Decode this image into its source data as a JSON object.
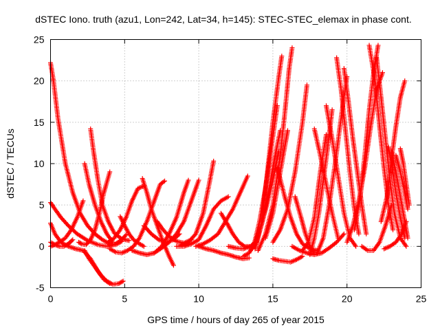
{
  "chart_data": {
    "type": "scatter",
    "title": "dSTEC Iono. truth (azu1, Lon=242, Lat=34, h=145): STEC-STEC_elemax in phase cont.",
    "xlabel": "GPS time / hours of day 265 of year 2015",
    "ylabel": "dSTEC  / TECUs",
    "xlim": [
      0,
      25
    ],
    "ylim": [
      -5,
      25
    ],
    "x_ticks": [
      0,
      5,
      10,
      15,
      20,
      25
    ],
    "y_ticks": [
      -5,
      0,
      5,
      10,
      15,
      20,
      25
    ],
    "grid": true,
    "marker": "plus",
    "color": "#ff0000",
    "arcs": [
      {
        "x": [
          0.0,
          0.2,
          0.5,
          1.0,
          1.5,
          2.0,
          2.5,
          3.0,
          3.5,
          4.0,
          4.4,
          4.8
        ],
        "y": [
          22.2,
          20.0,
          15.5,
          10.0,
          6.5,
          4.0,
          2.5,
          1.5,
          0.8,
          0.3,
          0.2,
          0.6
        ]
      },
      {
        "x": [
          0.0,
          0.3,
          0.7,
          1.2,
          1.8,
          2.5,
          3.2,
          3.8,
          4.3,
          4.8,
          5.1
        ],
        "y": [
          5.3,
          4.5,
          3.5,
          2.5,
          1.5,
          0.7,
          0.2,
          0.0,
          0.2,
          0.8,
          1.4
        ]
      },
      {
        "x": [
          0.0,
          0.3,
          0.7,
          1.2,
          1.7,
          2.2,
          2.7,
          3.2,
          3.6,
          4.0
        ],
        "y": [
          2.8,
          1.5,
          0.5,
          0.0,
          -0.3,
          -0.5,
          -1.5,
          -3.0,
          -4.0,
          -4.5
        ]
      },
      {
        "x": [
          0.0,
          0.3,
          0.6,
          1.0,
          1.4,
          1.8,
          2.2
        ],
        "y": [
          0.0,
          0.2,
          0.5,
          1.0,
          2.0,
          3.5,
          5.5
        ]
      },
      {
        "x": [
          0.0,
          0.3,
          0.6,
          0.9,
          1.2,
          1.5
        ],
        "y": [
          0.5,
          0.2,
          0.0,
          0.0,
          0.3,
          0.8
        ]
      },
      {
        "x": [
          2.3,
          2.6,
          3.0,
          3.4,
          3.8,
          4.2,
          4.6,
          4.9
        ],
        "y": [
          -0.5,
          -1.5,
          -2.5,
          -3.5,
          -4.2,
          -4.6,
          -4.5,
          -4.2
        ]
      },
      {
        "x": [
          2.7,
          2.9,
          3.2,
          3.5,
          3.9,
          4.3,
          4.8,
          5.3
        ],
        "y": [
          14.2,
          11.5,
          8.0,
          5.0,
          3.0,
          1.6,
          0.9,
          0.7
        ]
      },
      {
        "x": [
          2.3,
          2.6,
          3.0,
          3.4,
          3.8,
          4.2
        ],
        "y": [
          10.0,
          7.5,
          5.0,
          3.0,
          1.5,
          0.5
        ]
      },
      {
        "x": [
          1.9,
          2.1,
          2.4,
          2.7,
          3.0,
          3.3,
          3.6,
          4.0
        ],
        "y": [
          0.5,
          0.3,
          0.2,
          0.8,
          2.0,
          4.0,
          6.5,
          9.0
        ]
      },
      {
        "x": [
          4.7,
          5.0,
          5.3,
          5.6,
          6.0,
          6.3
        ],
        "y": [
          3.6,
          2.5,
          1.5,
          0.8,
          0.3,
          0.0
        ]
      },
      {
        "x": [
          3.9,
          4.3,
          4.7,
          5.1,
          5.5,
          5.9,
          6.3
        ],
        "y": [
          0.5,
          1.0,
          2.0,
          3.5,
          5.5,
          7.0,
          7.3
        ]
      },
      {
        "x": [
          4.0,
          4.4,
          4.8,
          5.2,
          5.6,
          6.0,
          6.5,
          7.0,
          7.4,
          7.7
        ],
        "y": [
          -0.3,
          -0.7,
          -0.8,
          -0.5,
          0.0,
          1.0,
          3.0,
          5.5,
          7.5,
          7.9
        ]
      },
      {
        "x": [
          6.2,
          6.5,
          6.8,
          7.2,
          7.6,
          8.0,
          8.3
        ],
        "y": [
          8.2,
          6.5,
          4.5,
          2.5,
          0.5,
          -1.2,
          -2.3
        ]
      },
      {
        "x": [
          5.5,
          6.0,
          6.5,
          7.0,
          7.5,
          8.0,
          8.5,
          9.0,
          9.3
        ],
        "y": [
          -0.5,
          -0.8,
          -1.0,
          -0.8,
          0.0,
          1.5,
          3.5,
          6.5,
          8.0
        ]
      },
      {
        "x": [
          6.3,
          6.8,
          7.3,
          7.8,
          8.3,
          8.7
        ],
        "y": [
          2.5,
          1.5,
          0.8,
          0.5,
          0.8,
          1.5
        ]
      },
      {
        "x": [
          7.0,
          7.5,
          8.0,
          8.5,
          9.0,
          9.5,
          10.0
        ],
        "y": [
          -0.8,
          -0.2,
          0.5,
          1.5,
          3.0,
          5.5,
          8.0
        ]
      },
      {
        "x": [
          7.2,
          7.6,
          8.0,
          8.5,
          9.0,
          9.5
        ],
        "y": [
          3.0,
          2.0,
          1.2,
          0.6,
          0.4,
          0.8
        ]
      },
      {
        "x": [
          8.8,
          9.3,
          9.8,
          10.3,
          10.7,
          11.0
        ],
        "y": [
          0.1,
          0.5,
          1.5,
          4.0,
          7.5,
          10.3
        ]
      },
      {
        "x": [
          8.5,
          9.0,
          9.5,
          10.0,
          10.5,
          11.0,
          11.5,
          12.0
        ],
        "y": [
          0.0,
          0.0,
          0.3,
          0.8,
          2.5,
          4.5,
          5.5,
          6.0
        ]
      },
      {
        "x": [
          9.8,
          10.3,
          10.8,
          11.3,
          11.8,
          12.3,
          12.8,
          13.3
        ],
        "y": [
          0.0,
          0.3,
          0.8,
          1.5,
          3.0,
          4.5,
          6.5,
          8.5
        ]
      },
      {
        "x": [
          10.0,
          10.5,
          11.0,
          11.5,
          12.0,
          12.5,
          13.0,
          13.4
        ],
        "y": [
          0.0,
          -0.3,
          -0.5,
          -0.8,
          -1.0,
          -1.3,
          -1.5,
          -1.4
        ]
      },
      {
        "x": [
          11.5,
          11.9,
          12.3,
          12.7,
          13.1,
          13.5
        ],
        "y": [
          4.0,
          2.8,
          1.5,
          0.5,
          0.0,
          0.0
        ]
      },
      {
        "x": [
          12.0,
          12.5,
          13.0,
          13.5,
          13.8
        ],
        "y": [
          0.0,
          -0.2,
          -0.3,
          0.0,
          0.5
        ]
      },
      {
        "x": [
          13.0,
          13.4,
          13.8,
          14.2,
          14.6,
          15.0,
          15.4
        ],
        "y": [
          -1.2,
          -0.8,
          0.5,
          2.5,
          5.0,
          8.0,
          11.5
        ]
      },
      {
        "x": [
          13.5,
          13.9,
          14.3,
          14.7,
          15.1,
          15.5
        ],
        "y": [
          -0.5,
          0.5,
          3.0,
          6.5,
          10.5,
          14.0
        ]
      },
      {
        "x": [
          13.7,
          14.1,
          14.5,
          14.9,
          15.3
        ],
        "y": [
          0.0,
          3.0,
          7.0,
          12.0,
          17.0
        ]
      },
      {
        "x": [
          13.8,
          14.2,
          14.6,
          15.0,
          15.4,
          15.6
        ],
        "y": [
          -0.3,
          2.5,
          8.5,
          15.0,
          20.5,
          23.0
        ]
      },
      {
        "x": [
          14.0,
          14.5,
          15.0,
          15.5,
          15.8,
          16.1,
          16.3
        ],
        "y": [
          -0.5,
          1.5,
          5.0,
          11.0,
          16.0,
          21.5,
          24.0
        ]
      },
      {
        "x": [
          14.5,
          15.0,
          15.4,
          15.8,
          16.0
        ],
        "y": [
          1.0,
          4.0,
          8.0,
          12.0,
          14.0
        ]
      },
      {
        "x": [
          15.0,
          15.5,
          16.0,
          16.5,
          17.0,
          17.3
        ],
        "y": [
          0.5,
          2.0,
          4.5,
          9.0,
          15.0,
          19.5
        ]
      },
      {
        "x": [
          15.0,
          15.4,
          15.8,
          16.2,
          16.6,
          17.0
        ],
        "y": [
          -1.5,
          -1.7,
          -1.8,
          -1.9,
          -1.6,
          -1.2
        ]
      },
      {
        "x": [
          15.3,
          15.8,
          16.2,
          16.6,
          17.0,
          17.5,
          18.0
        ],
        "y": [
          9.5,
          6.0,
          3.5,
          1.5,
          0.3,
          -0.3,
          -0.5
        ]
      },
      {
        "x": [
          16.3,
          16.8,
          17.3,
          17.8,
          18.3,
          18.8,
          19.3,
          19.8
        ],
        "y": [
          0.0,
          -0.5,
          -0.8,
          -1.0,
          -0.8,
          -0.2,
          0.5,
          1.5
        ]
      },
      {
        "x": [
          17.0,
          17.4,
          17.8,
          18.2,
          18.6
        ],
        "y": [
          -0.5,
          0.5,
          3.5,
          9.0,
          13.5
        ]
      },
      {
        "x": [
          17.5,
          17.8,
          18.1,
          18.4,
          18.7,
          19.0
        ],
        "y": [
          -1.0,
          1.0,
          4.0,
          8.0,
          12.0,
          16.5
        ]
      },
      {
        "x": [
          18.0,
          18.4,
          18.8,
          19.2,
          19.6,
          20.0
        ],
        "y": [
          -0.8,
          1.0,
          5.0,
          10.0,
          15.5,
          20.5
        ]
      },
      {
        "x": [
          18.6,
          19.0,
          19.4,
          19.8,
          20.2,
          20.6
        ],
        "y": [
          17.0,
          13.0,
          8.5,
          4.0,
          1.0,
          0.0
        ]
      },
      {
        "x": [
          19.3,
          19.6,
          19.9,
          20.2,
          20.5,
          20.8
        ],
        "y": [
          22.8,
          19.0,
          14.0,
          9.0,
          4.5,
          1.5
        ]
      },
      {
        "x": [
          19.8,
          20.1,
          20.4,
          20.7,
          21.0,
          21.3
        ],
        "y": [
          21.5,
          17.5,
          13.0,
          9.0,
          5.0,
          1.5
        ]
      },
      {
        "x": [
          20.0,
          20.4,
          20.8,
          21.2,
          21.6,
          22.0,
          22.4
        ],
        "y": [
          0.5,
          2.5,
          5.5,
          9.5,
          14.5,
          19.0,
          21.0
        ]
      },
      {
        "x": [
          20.5,
          20.9,
          21.2,
          21.5,
          21.8,
          22.1
        ],
        "y": [
          2.0,
          6.0,
          11.0,
          16.5,
          21.0,
          24.3
        ]
      },
      {
        "x": [
          21.0,
          21.4,
          21.8,
          22.2,
          22.6,
          23.0
        ],
        "y": [
          0.0,
          -0.5,
          -0.5,
          0.5,
          2.5,
          5.0
        ]
      },
      {
        "x": [
          21.5,
          21.9,
          22.2,
          22.5,
          22.8,
          23.1
        ],
        "y": [
          24.3,
          20.0,
          14.5,
          9.5,
          5.0,
          2.0
        ]
      },
      {
        "x": [
          22.0,
          22.3,
          22.6,
          22.9,
          23.2,
          23.6,
          24.0
        ],
        "y": [
          22.8,
          18.0,
          13.0,
          8.0,
          4.0,
          1.0,
          0.0
        ]
      },
      {
        "x": [
          22.3,
          22.7,
          23.0,
          23.3,
          23.6,
          23.9
        ],
        "y": [
          3.0,
          6.0,
          10.5,
          14.5,
          18.0,
          20.0
        ]
      },
      {
        "x": [
          22.8,
          23.0,
          23.3,
          23.6,
          23.9
        ],
        "y": [
          12.0,
          10.0,
          6.5,
          3.5,
          1.0
        ]
      },
      {
        "x": [
          23.0,
          23.3,
          23.6,
          23.9,
          24.1
        ],
        "y": [
          11.5,
          9.0,
          6.0,
          3.0,
          1.0
        ]
      },
      {
        "x": [
          22.5,
          22.9,
          23.3,
          23.7,
          24.0
        ],
        "y": [
          -0.3,
          0.0,
          0.5,
          1.5,
          3.0
        ]
      },
      {
        "x": [
          23.3,
          23.6,
          23.9,
          24.1
        ],
        "y": [
          11.0,
          9.0,
          6.5,
          4.5
        ]
      },
      {
        "x": [
          23.6,
          23.8,
          24.0,
          24.2
        ],
        "y": [
          11.8,
          10.0,
          7.5,
          5.0
        ]
      },
      {
        "x": [
          17.8,
          18.2,
          18.6,
          19.0,
          19.4
        ],
        "y": [
          14.2,
          11.0,
          7.5,
          4.0,
          1.0
        ]
      },
      {
        "x": [
          16.5,
          16.9,
          17.2,
          17.5,
          17.8
        ],
        "y": [
          6.0,
          3.5,
          1.5,
          0.0,
          -0.8
        ]
      }
    ]
  }
}
